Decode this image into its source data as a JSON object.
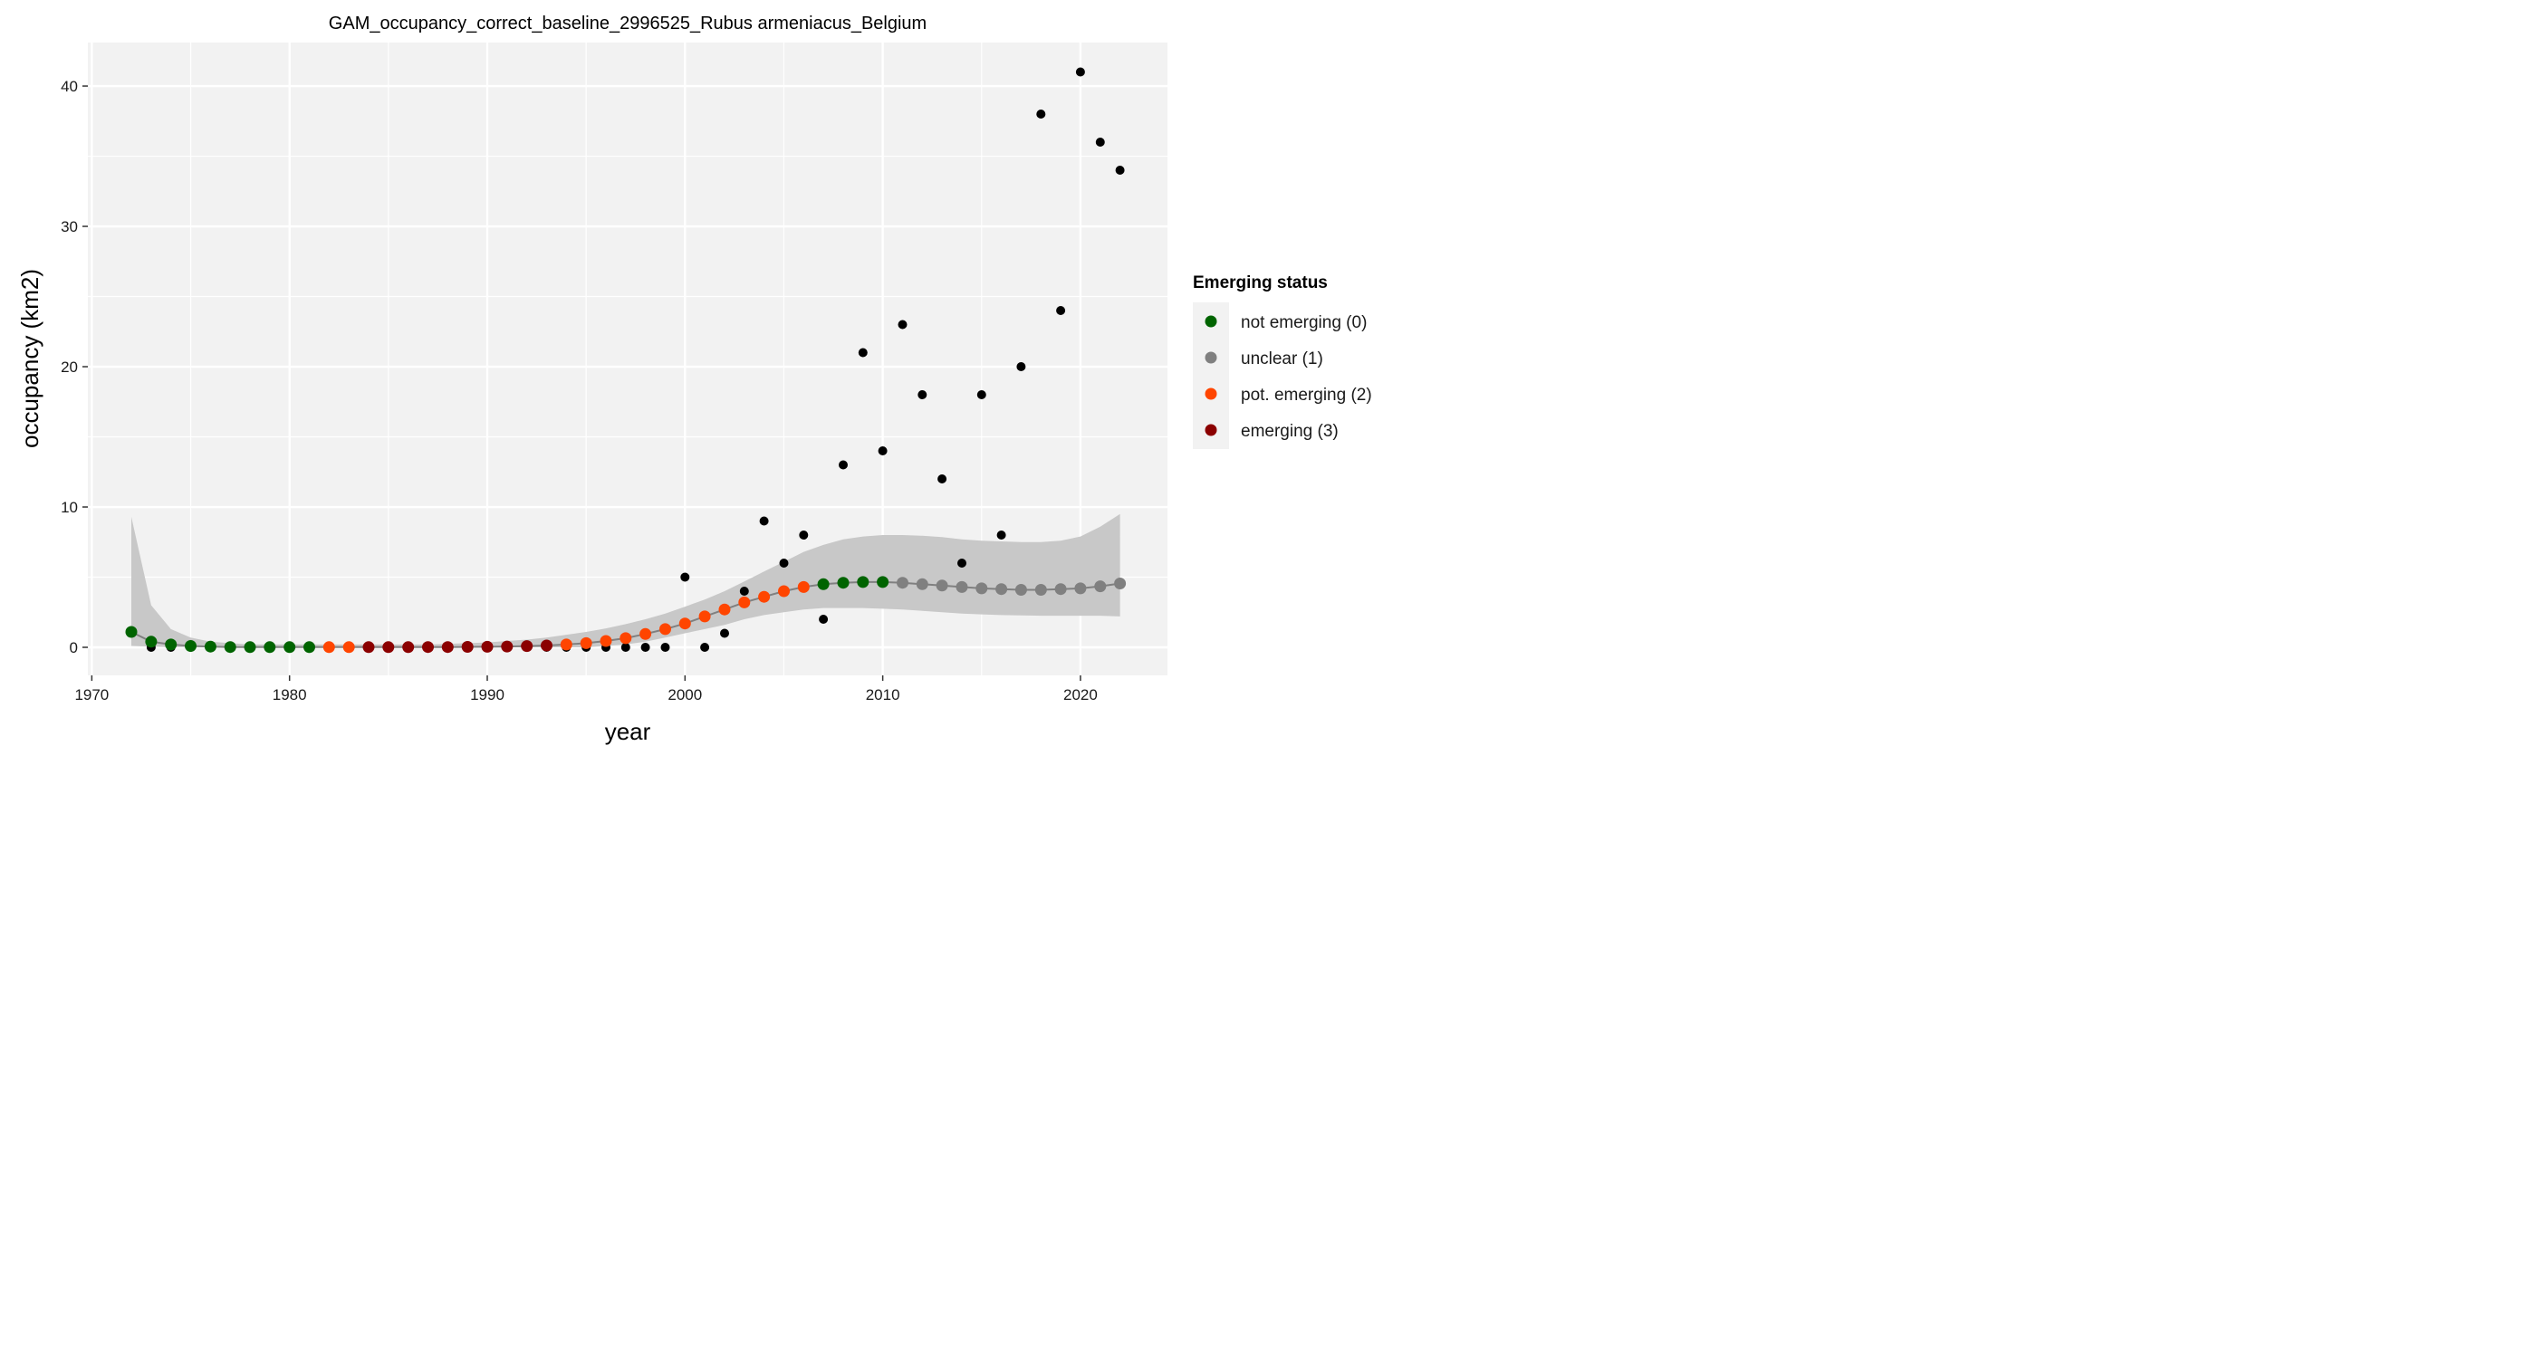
{
  "chart_data": {
    "type": "scatter",
    "title": "GAM_occupancy_correct_baseline_2996525_Rubus armeniacus_Belgium",
    "xlabel": "year",
    "ylabel": "occupancy (km2)",
    "xlim": [
      1969.8,
      2024.4
    ],
    "ylim": [
      -2.0,
      43.1
    ],
    "x_ticks": [
      1970,
      1980,
      1990,
      2000,
      2010,
      2020
    ],
    "y_ticks": [
      0,
      10,
      20,
      30,
      40
    ],
    "grid": true,
    "legend": {
      "title": "Emerging status",
      "position": "right",
      "entries": [
        {
          "label": "not emerging (0)",
          "color": "#006400"
        },
        {
          "label": "unclear (1)",
          "color": "#808080"
        },
        {
          "label": "pot. emerging (2)",
          "color": "#FF4500"
        },
        {
          "label": "emerging (3)",
          "color": "#8B0000"
        }
      ]
    },
    "observed": {
      "color": "#000000",
      "x": [
        1973,
        1974,
        1975,
        1976,
        1977,
        1978,
        1979,
        1980,
        1981,
        1982,
        1983,
        1984,
        1985,
        1986,
        1987,
        1988,
        1989,
        1990,
        1991,
        1992,
        1993,
        1994,
        1995,
        1996,
        1997,
        1998,
        1999,
        2000,
        2001,
        2002,
        2003,
        2004,
        2005,
        2006,
        2007,
        2008,
        2009,
        2010,
        2011,
        2012,
        2013,
        2014,
        2015,
        2016,
        2017,
        2018,
        2019,
        2020,
        2021,
        2022
      ],
      "y": [
        0,
        0,
        0,
        0,
        0,
        0,
        0,
        0,
        0,
        0,
        0,
        0,
        0,
        0,
        0,
        0,
        0,
        0,
        0,
        0,
        0,
        0,
        0,
        0,
        0,
        0,
        0,
        5,
        0,
        1,
        4,
        9,
        6,
        8,
        2,
        13,
        21,
        14,
        23,
        18,
        12,
        6,
        18,
        8,
        20,
        38,
        24,
        41,
        36,
        34
      ]
    },
    "fit": {
      "line_color": "#808080",
      "band_color": "#c8c8c8",
      "x": [
        1972,
        1973,
        1974,
        1975,
        1976,
        1977,
        1978,
        1979,
        1980,
        1981,
        1982,
        1983,
        1984,
        1985,
        1986,
        1987,
        1988,
        1989,
        1990,
        1991,
        1992,
        1993,
        1994,
        1995,
        1996,
        1997,
        1998,
        1999,
        2000,
        2001,
        2002,
        2003,
        2004,
        2005,
        2006,
        2007,
        2008,
        2009,
        2010,
        2011,
        2012,
        2013,
        2014,
        2015,
        2016,
        2017,
        2018,
        2019,
        2020,
        2021,
        2022
      ],
      "y": [
        1.1,
        0.4,
        0.2,
        0.1,
        0.05,
        0.02,
        0.01,
        0.01,
        0.01,
        0.01,
        0.01,
        0.01,
        0.01,
        0.01,
        0.01,
        0.02,
        0.02,
        0.03,
        0.04,
        0.06,
        0.09,
        0.13,
        0.2,
        0.3,
        0.45,
        0.65,
        0.95,
        1.3,
        1.7,
        2.2,
        2.7,
        3.2,
        3.6,
        4.0,
        4.3,
        4.5,
        4.6,
        4.65,
        4.65,
        4.6,
        4.5,
        4.4,
        4.3,
        4.2,
        4.15,
        4.1,
        4.1,
        4.15,
        4.2,
        4.35,
        4.55
      ],
      "lower": [
        0.1,
        0.05,
        0.02,
        0.01,
        0.0,
        0.0,
        0.0,
        0.0,
        0.0,
        0.0,
        0.0,
        0.0,
        0.0,
        0.0,
        0.0,
        0.0,
        0.0,
        0.0,
        0.0,
        0.0,
        0.0,
        0.0,
        0.0,
        0.0,
        0.1,
        0.2,
        0.4,
        0.7,
        1.0,
        1.3,
        1.6,
        2.0,
        2.3,
        2.5,
        2.7,
        2.8,
        2.8,
        2.8,
        2.75,
        2.7,
        2.6,
        2.5,
        2.4,
        2.35,
        2.3,
        2.28,
        2.25,
        2.25,
        2.25,
        2.25,
        2.2
      ],
      "upper": [
        9.3,
        3.0,
        1.3,
        0.7,
        0.4,
        0.3,
        0.2,
        0.2,
        0.2,
        0.2,
        0.2,
        0.2,
        0.2,
        0.2,
        0.2,
        0.2,
        0.25,
        0.3,
        0.35,
        0.45,
        0.55,
        0.7,
        0.9,
        1.1,
        1.35,
        1.65,
        2.0,
        2.4,
        2.9,
        3.4,
        4.0,
        4.7,
        5.4,
        6.1,
        6.8,
        7.3,
        7.7,
        7.9,
        8.0,
        8.0,
        7.95,
        7.85,
        7.7,
        7.6,
        7.55,
        7.5,
        7.5,
        7.6,
        7.9,
        8.6,
        9.5
      ],
      "status": [
        0,
        0,
        0,
        0,
        0,
        0,
        0,
        0,
        0,
        0,
        2,
        2,
        3,
        3,
        3,
        3,
        3,
        3,
        3,
        3,
        3,
        3,
        2,
        2,
        2,
        2,
        2,
        2,
        2,
        2,
        2,
        2,
        2,
        2,
        2,
        0,
        0,
        0,
        0,
        1,
        1,
        1,
        1,
        1,
        1,
        1,
        1,
        1,
        1,
        1,
        1
      ]
    }
  }
}
